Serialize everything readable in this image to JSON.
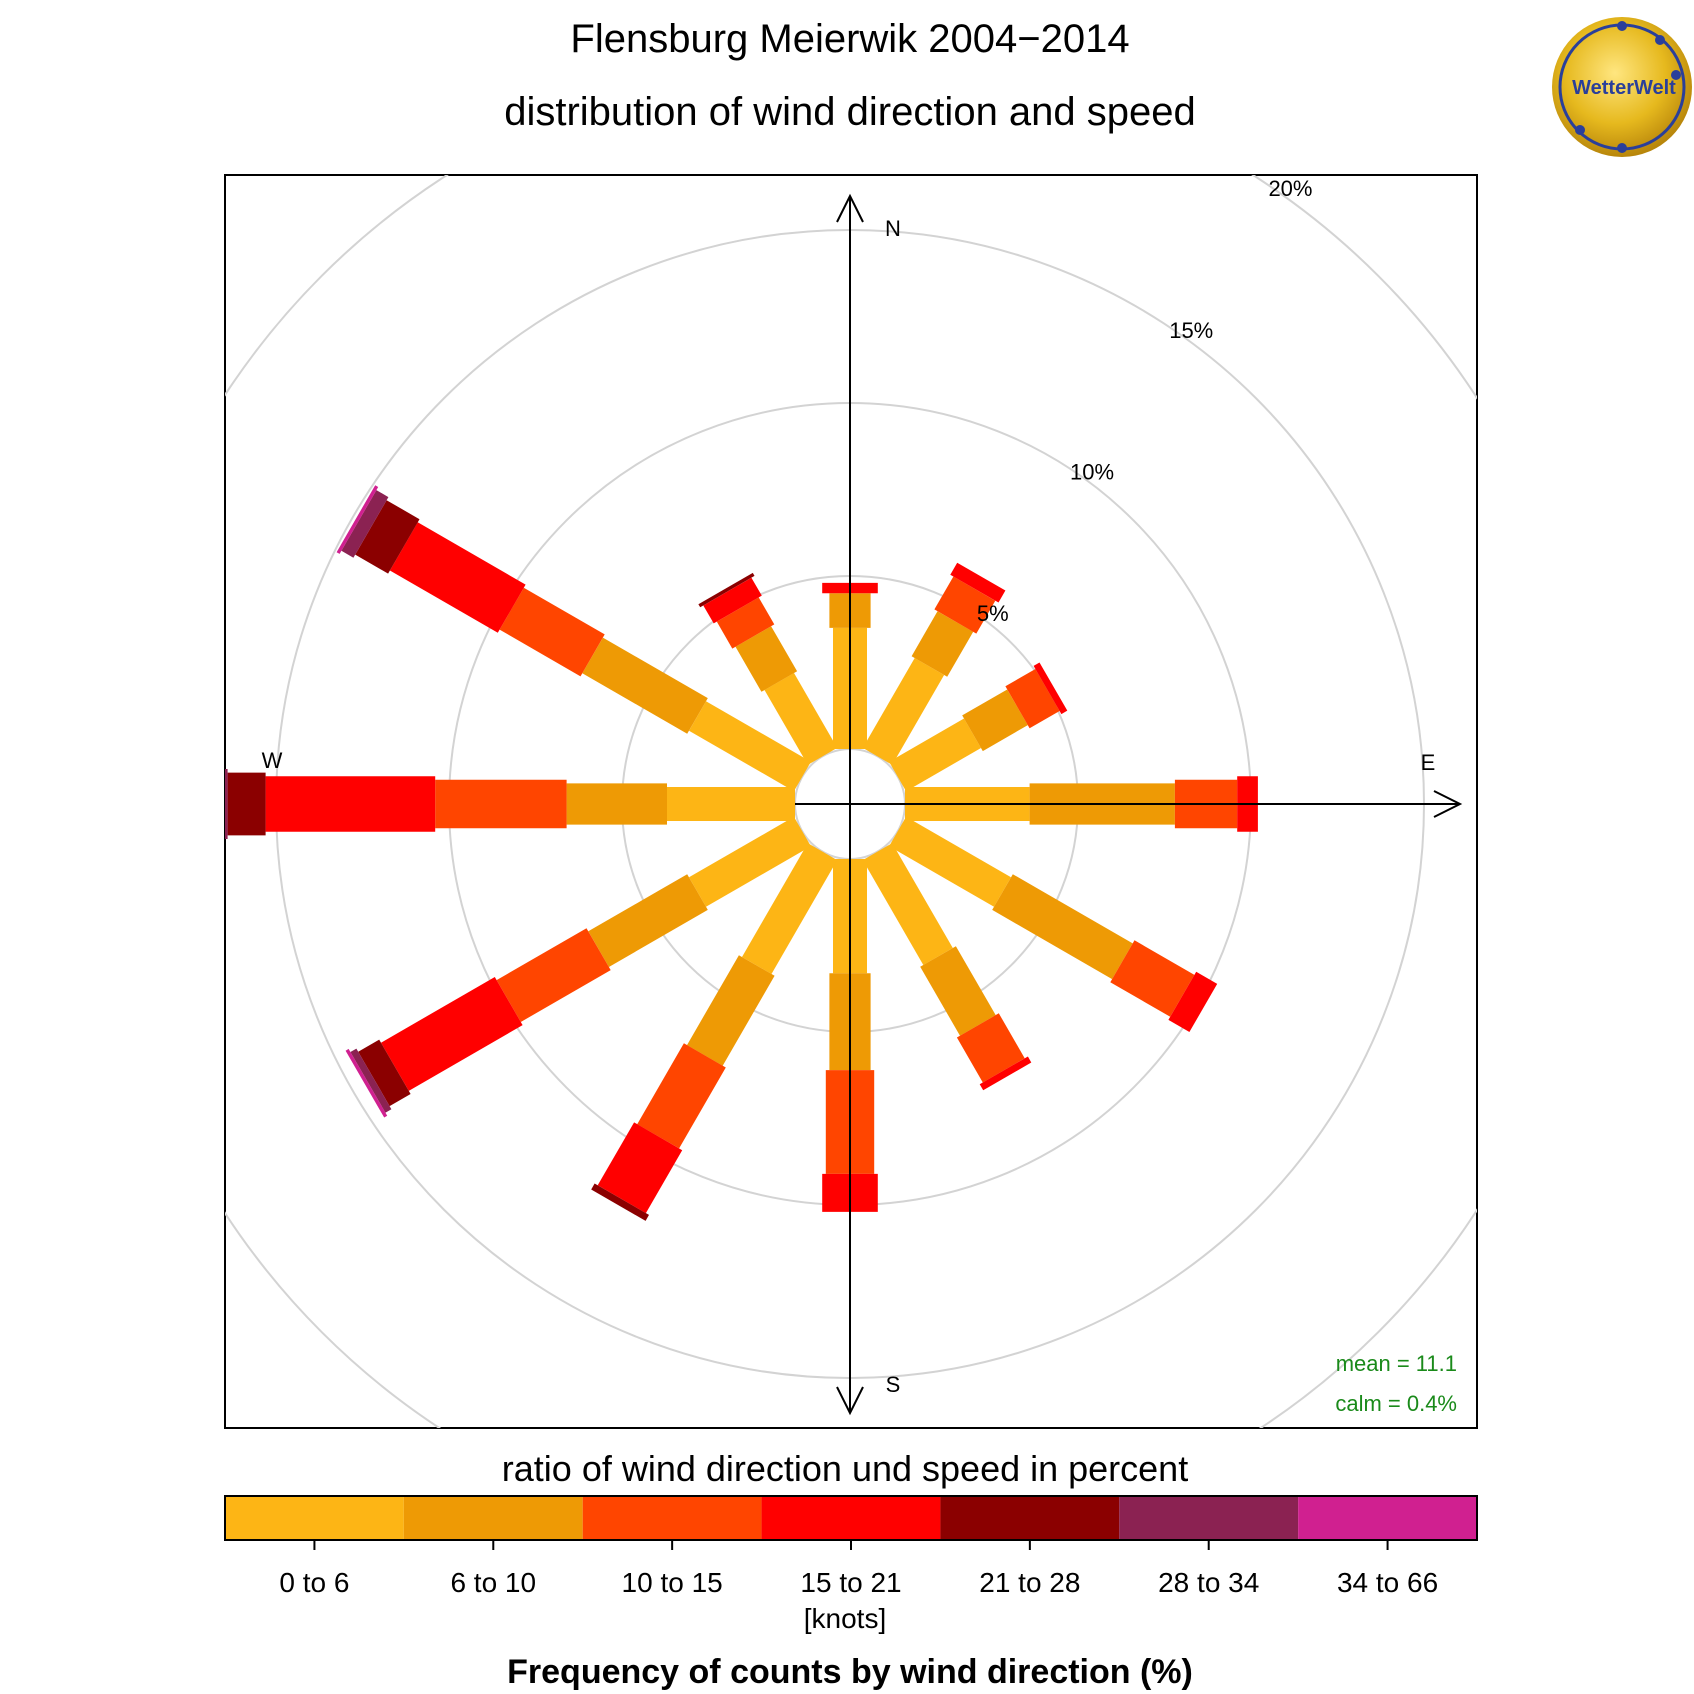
{
  "header": {
    "title": "Flensburg Meierwik 2004−2014",
    "subtitle": "distribution of wind direction and speed"
  },
  "logo": {
    "text": "WetterWelt",
    "icon": "wetterwelt-logo"
  },
  "stats": {
    "mean": "mean = 11.1",
    "calm": "calm = 0.4%"
  },
  "compass": {
    "north": "N",
    "east": "E",
    "south": "S",
    "west": "W"
  },
  "legend": {
    "title": "ratio of wind direction und speed in percent",
    "unit": "[knots]",
    "footer": "Frequency of counts by wind direction (%)"
  },
  "colors": {
    "0 to 6": "#FDB515",
    "6 to 10": "#EE9A05",
    "10 to 15": "#FF4500",
    "15 to 21": "#FF0000",
    "21 to 28": "#8B0000",
    "28 to 34": "#8B2252",
    "34 to 66": "#D02090"
  },
  "chart_data": {
    "type": "windrose",
    "directions": [
      0,
      30,
      60,
      90,
      120,
      150,
      180,
      210,
      240,
      270,
      300,
      330
    ],
    "speed_bins": [
      "0 to 6",
      "6 to 10",
      "10 to 15",
      "15 to 21",
      "21 to 28",
      "28 to 34",
      "34 to 66"
    ],
    "ring_values": [
      5,
      10,
      15,
      20
    ],
    "ring_labels": [
      "5%",
      "10%",
      "15%",
      "20%"
    ],
    "rlim": [
      0,
      20
    ],
    "calm_percent": 0.4,
    "series": [
      {
        "direction": 0,
        "cumulative": [
          3.5,
          4.5,
          4.5,
          4.8,
          4.8,
          4.8,
          4.8
        ]
      },
      {
        "direction": 30,
        "cumulative": [
          3.0,
          4.5,
          5.6,
          6.0,
          6.0,
          6.0,
          6.0
        ]
      },
      {
        "direction": 60,
        "cumulative": [
          2.5,
          4.0,
          5.0,
          5.2,
          5.2,
          5.2,
          5.2
        ]
      },
      {
        "direction": 90,
        "cumulative": [
          3.6,
          7.8,
          9.6,
          10.2,
          10.2,
          10.2,
          10.2
        ]
      },
      {
        "direction": 120,
        "cumulative": [
          3.5,
          7.5,
          9.5,
          10.2,
          10.2,
          10.2,
          10.2
        ]
      },
      {
        "direction": 150,
        "cumulative": [
          3.5,
          5.8,
          7.3,
          7.5,
          7.5,
          7.5,
          7.5
        ]
      },
      {
        "direction": 180,
        "cumulative": [
          3.3,
          6.1,
          9.1,
          10.2,
          10.2,
          10.2,
          10.2
        ]
      },
      {
        "direction": 210,
        "cumulative": [
          3.8,
          6.8,
          9.5,
          11.6,
          11.8,
          11.8,
          11.8
        ]
      },
      {
        "direction": 240,
        "cumulative": [
          3.5,
          6.8,
          9.8,
          13.6,
          14.3,
          14.5,
          14.6
        ]
      },
      {
        "direction": 270,
        "cumulative": [
          3.7,
          6.6,
          10.4,
          15.3,
          16.4,
          16.8,
          17.7
        ]
      },
      {
        "direction": 300,
        "cumulative": [
          3.5,
          7.0,
          9.7,
          13.3,
          14.4,
          14.8,
          14.9
        ]
      },
      {
        "direction": 330,
        "cumulative": [
          2.5,
          4.0,
          4.9,
          5.5,
          5.6,
          5.6,
          5.6
        ]
      }
    ]
  }
}
